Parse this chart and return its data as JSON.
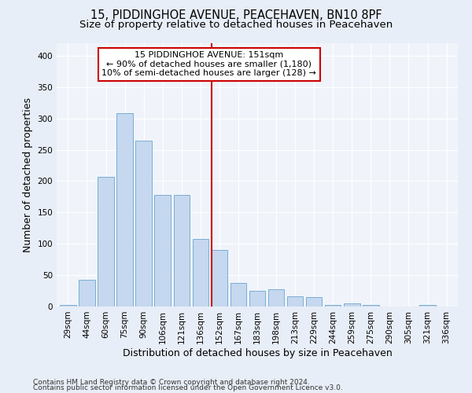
{
  "title": "15, PIDDINGHOE AVENUE, PEACEHAVEN, BN10 8PF",
  "subtitle": "Size of property relative to detached houses in Peacehaven",
  "xlabel": "Distribution of detached houses by size in Peacehaven",
  "ylabel": "Number of detached properties",
  "categories": [
    "29sqm",
    "44sqm",
    "60sqm",
    "75sqm",
    "90sqm",
    "106sqm",
    "121sqm",
    "136sqm",
    "152sqm",
    "167sqm",
    "183sqm",
    "198sqm",
    "213sqm",
    "229sqm",
    "244sqm",
    "259sqm",
    "275sqm",
    "290sqm",
    "305sqm",
    "321sqm",
    "336sqm"
  ],
  "values": [
    3,
    43,
    207,
    308,
    265,
    178,
    178,
    108,
    90,
    38,
    25,
    28,
    16,
    15,
    3,
    5,
    3,
    0,
    0,
    3,
    0
  ],
  "bar_color": "#c5d8ef",
  "bar_edge_color": "#7aadd4",
  "vline_x_index": 8,
  "annotation_title": "15 PIDDINGHOE AVENUE: 151sqm",
  "annotation_line1": "← 90% of detached houses are smaller (1,180)",
  "annotation_line2": "10% of semi-detached houses are larger (128) →",
  "annotation_box_color": "#ffffff",
  "annotation_box_edge": "#cc0000",
  "vline_color": "#cc0000",
  "footer1": "Contains HM Land Registry data © Crown copyright and database right 2024.",
  "footer2": "Contains public sector information licensed under the Open Government Licence v3.0.",
  "ylim": [
    0,
    420
  ],
  "yticks": [
    0,
    50,
    100,
    150,
    200,
    250,
    300,
    350,
    400
  ],
  "title_fontsize": 10.5,
  "subtitle_fontsize": 9.5,
  "ylabel_fontsize": 9,
  "xlabel_fontsize": 9,
  "tick_fontsize": 7.5,
  "annotation_fontsize": 8,
  "footer_fontsize": 6.5,
  "bg_color": "#e8eef7",
  "plot_bg_color": "#f0f4fa"
}
